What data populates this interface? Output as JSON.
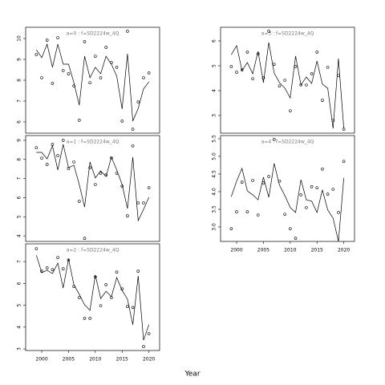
{
  "xlabel": "Year",
  "chart_data": [
    {
      "type": "line",
      "title": "a=0  :  f=SD2224w_4Q",
      "x": [
        1999,
        2000,
        2001,
        2002,
        2003,
        2004,
        2005,
        2006,
        2007,
        2008,
        2009,
        2010,
        2011,
        2012,
        2013,
        2014,
        2015,
        2016,
        2017,
        2018,
        2019,
        2020
      ],
      "xlim": [
        1997,
        2022
      ],
      "ylim": [
        5.46,
        10.54
      ],
      "yticks": [
        6,
        7,
        8,
        9,
        10
      ],
      "series": [
        {
          "color": "#000000",
          "style": "line",
          "values": [
            9.46,
            9.08,
            9.73,
            8.62,
            9.73,
            8.77,
            8.77,
            7.88,
            6.8,
            9.15,
            8.12,
            8.62,
            8.31,
            9.15,
            8.77,
            8.19,
            6.62,
            9.27,
            6.04,
            6.65,
            7.58,
            7.92
          ]
        },
        {
          "color": "#000000",
          "style": "points",
          "values": [
            9.23,
            8.12,
            9.92,
            7.85,
            10.04,
            8.46,
            8.31,
            7.73,
            6.08,
            9.85,
            7.88,
            9.15,
            8.12,
            9.58,
            8.85,
            8.62,
            6.04,
            10.35,
            5.65,
            6.96,
            8.12,
            8.35
          ]
        }
      ]
    },
    {
      "type": "line",
      "title": "a=1  :  f=SD2224w_4Q",
      "x": [
        1999,
        2000,
        2001,
        2002,
        2003,
        2004,
        2005,
        2006,
        2007,
        2008,
        2009,
        2010,
        2011,
        2012,
        2013,
        2014,
        2015,
        2016,
        2017,
        2018,
        2019,
        2020
      ],
      "xlim": [
        1997,
        2022
      ],
      "ylim": [
        3.71,
        9.25
      ],
      "yticks": [
        4,
        5,
        6,
        7,
        8,
        9
      ],
      "series": [
        {
          "color": "#000000",
          "style": "line",
          "values": [
            8.37,
            8.37,
            8.03,
            8.71,
            7.45,
            8.79,
            7.57,
            7.7,
            6.69,
            5.51,
            7.87,
            7.03,
            7.4,
            7.11,
            8.12,
            7.45,
            6.69,
            5.43,
            8.12,
            4.8,
            5.39,
            6.02
          ]
        },
        {
          "color": "#000000",
          "style": "points",
          "values": [
            8.62,
            8.07,
            7.74,
            8.79,
            8.2,
            9.0,
            7.53,
            7.87,
            5.81,
            3.87,
            7.57,
            6.69,
            7.28,
            7.19,
            8.08,
            7.28,
            6.6,
            5.05,
            8.71,
            5.73,
            5.73,
            6.52
          ]
        }
      ]
    },
    {
      "type": "line",
      "title": "a=2  :  f=SD2224w_4Q",
      "x": [
        1999,
        2000,
        2001,
        2002,
        2003,
        2004,
        2005,
        2006,
        2007,
        2008,
        2009,
        2010,
        2011,
        2012,
        2013,
        2014,
        2015,
        2016,
        2017,
        2018,
        2019,
        2020
      ],
      "xlim": [
        1997,
        2022
      ],
      "ylim": [
        2.93,
        7.81
      ],
      "yticks": [
        3,
        4,
        5,
        6,
        7
      ],
      "xticks": [
        2000,
        2005,
        2010,
        2015,
        2020
      ],
      "series": [
        {
          "color": "#000000",
          "style": "line",
          "values": [
            7.29,
            6.49,
            6.6,
            6.45,
            6.93,
            5.79,
            7.11,
            5.94,
            5.5,
            5.02,
            4.77,
            6.38,
            5.31,
            5.64,
            5.39,
            6.27,
            5.68,
            5.28,
            4.11,
            6.34,
            3.4,
            4.11
          ]
        },
        {
          "color": "#000000",
          "style": "points",
          "values": [
            7.59,
            6.56,
            6.71,
            6.63,
            7.18,
            6.67,
            7.07,
            5.86,
            5.35,
            4.4,
            4.4,
            6.3,
            4.98,
            5.94,
            5.35,
            6.52,
            5.75,
            4.94,
            4.9,
            6.56,
            3.11,
            3.7
          ]
        }
      ]
    },
    {
      "type": "line",
      "title": "a=3  :  f=SD2224w_4Q",
      "x": [
        1999,
        2000,
        2001,
        2002,
        2003,
        2004,
        2005,
        2006,
        2007,
        2008,
        2009,
        2010,
        2011,
        2012,
        2013,
        2014,
        2015,
        2016,
        2017,
        2018,
        2019,
        2020
      ],
      "xlim": [
        1997,
        2022
      ],
      "ylim": [
        2.29,
        6.55
      ],
      "yticks": [
        3,
        4,
        5,
        6
      ],
      "series": [
        {
          "color": "#000000",
          "style": "line",
          "values": [
            5.45,
            5.81,
            4.81,
            5.13,
            4.68,
            5.58,
            4.32,
            5.94,
            4.71,
            4.32,
            4.1,
            3.71,
            5.39,
            4.23,
            4.55,
            4.29,
            5.19,
            4.26,
            4.1,
            2.48,
            5.29,
            2.48
          ]
        },
        {
          "color": "#000000",
          "style": "points",
          "values": [
            4.97,
            4.74,
            4.84,
            5.55,
            4.48,
            5.48,
            4.52,
            6.39,
            5.06,
            4.19,
            4.42,
            3.19,
            4.97,
            4.23,
            4.23,
            4.68,
            5.55,
            3.61,
            4.94,
            2.81,
            4.61,
            2.45
          ]
        }
      ]
    },
    {
      "type": "line",
      "title": "a=4  :  f=SD2224w_4Q",
      "x": [
        1999,
        2000,
        2001,
        2002,
        2003,
        2004,
        2005,
        2006,
        2007,
        2008,
        2009,
        2010,
        2011,
        2012,
        2013,
        2014,
        2015,
        2016,
        2017,
        2018,
        2019,
        2020
      ],
      "xlim": [
        1997,
        2022
      ],
      "ylim": [
        2.59,
        5.59
      ],
      "yticks": [
        {
          "value": 3,
          "label": "3.0"
        },
        3.5,
        {
          "value": 4,
          "label": "4.0"
        },
        4.5,
        {
          "value": 5,
          "label": "5.0"
        },
        5.5
      ],
      "xticks": [
        2000,
        2005,
        2010,
        2015,
        2020
      ],
      "series": [
        {
          "color": "#000000",
          "style": "line",
          "values": [
            3.86,
            4.3,
            4.66,
            4.02,
            3.91,
            3.77,
            4.41,
            3.84,
            4.8,
            4.18,
            3.89,
            3.55,
            3.41,
            4.34,
            3.77,
            3.73,
            3.41,
            4.05,
            3.48,
            3.25,
            2.59,
            4.39
          ]
        },
        {
          "color": "#000000",
          "style": "points",
          "values": [
            2.95,
            3.43,
            4.27,
            3.43,
            4.32,
            3.34,
            4.25,
            4.43,
            5.48,
            4.3,
            3.36,
            2.95,
            2.68,
            3.91,
            3.55,
            4.14,
            4.11,
            4.64,
            3.93,
            4.07,
            3.41,
            4.86
          ]
        }
      ]
    }
  ]
}
